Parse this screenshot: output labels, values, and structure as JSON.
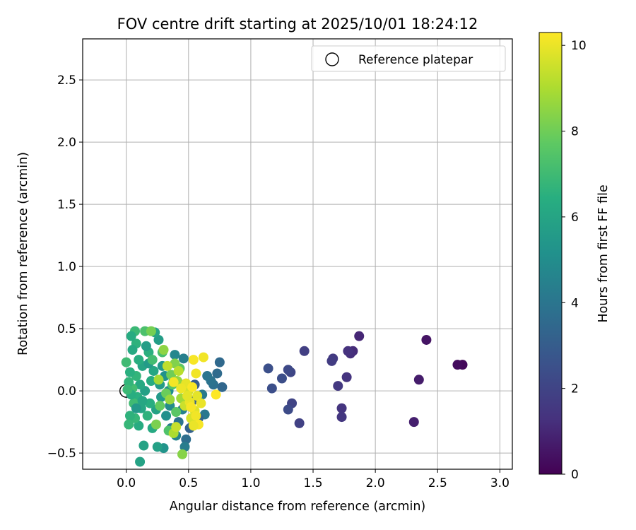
{
  "chart_data": {
    "type": "scatter",
    "title": "FOV centre drift starting at 2025/10/01 18:24:12",
    "xlabel": "Angular distance from reference (arcmin)",
    "ylabel": "Rotation from reference (arcmin)",
    "xlim": [
      -0.35,
      3.1
    ],
    "ylim": [
      -0.63,
      2.83
    ],
    "xticks": [
      0.0,
      0.5,
      1.0,
      1.5,
      2.0,
      2.5,
      3.0
    ],
    "xtick_labels": [
      "0.0",
      "0.5",
      "1.0",
      "1.5",
      "2.0",
      "2.5",
      "3.0"
    ],
    "yticks": [
      -0.5,
      0.0,
      0.5,
      1.0,
      1.5,
      2.0,
      2.5
    ],
    "ytick_labels": [
      "−0.5",
      "0.0",
      "0.5",
      "1.0",
      "1.5",
      "2.0",
      "2.5"
    ],
    "grid": true,
    "legend": {
      "location": "top-right",
      "entries": [
        "Reference platepar"
      ]
    },
    "reference": {
      "label": "Reference platepar",
      "x": 0.0,
      "y": 0.0
    },
    "colorbar": {
      "label": "Hours from first FF file",
      "colormap": "viridis",
      "range": [
        0,
        10.3
      ],
      "ticks": [
        0,
        2,
        4,
        6,
        8,
        10
      ],
      "tick_labels": [
        "0",
        "2",
        "4",
        "6",
        "8",
        "10"
      ]
    },
    "series": [
      {
        "name": "FOV centre drift",
        "points": [
          [
            2.7,
            0.21,
            0.2
          ],
          [
            2.66,
            0.21,
            0.3
          ],
          [
            2.41,
            0.41,
            0.5
          ],
          [
            2.35,
            0.09,
            0.7
          ],
          [
            2.31,
            -0.25,
            0.8
          ],
          [
            1.87,
            0.44,
            1.0
          ],
          [
            1.82,
            0.32,
            1.1
          ],
          [
            1.8,
            0.3,
            1.2
          ],
          [
            1.78,
            0.32,
            1.3
          ],
          [
            1.77,
            0.11,
            1.35
          ],
          [
            1.73,
            -0.14,
            1.4
          ],
          [
            1.73,
            -0.21,
            1.5
          ],
          [
            1.7,
            0.04,
            1.55
          ],
          [
            1.66,
            0.26,
            1.6
          ],
          [
            1.65,
            0.24,
            1.7
          ],
          [
            1.43,
            0.32,
            1.8
          ],
          [
            1.39,
            -0.26,
            1.9
          ],
          [
            1.33,
            -0.1,
            2.0
          ],
          [
            1.32,
            0.15,
            2.1
          ],
          [
            1.3,
            0.17,
            2.2
          ],
          [
            1.3,
            -0.15,
            2.3
          ],
          [
            1.25,
            0.1,
            2.4
          ],
          [
            1.17,
            0.02,
            2.45
          ],
          [
            1.14,
            0.18,
            2.5
          ],
          [
            0.77,
            0.03,
            3.4
          ],
          [
            0.75,
            0.23,
            3.5
          ],
          [
            0.73,
            0.14,
            3.6
          ],
          [
            0.7,
            0.05,
            3.8
          ],
          [
            0.68,
            0.08,
            3.9
          ],
          [
            0.65,
            0.12,
            4.0
          ],
          [
            0.63,
            -0.19,
            4.1
          ],
          [
            0.61,
            -0.03,
            4.2
          ],
          [
            0.58,
            -0.22,
            3.3
          ],
          [
            0.55,
            0.05,
            3.0
          ],
          [
            0.53,
            -0.08,
            3.1
          ],
          [
            0.51,
            -0.3,
            3.2
          ],
          [
            0.48,
            -0.39,
            3.7
          ],
          [
            0.47,
            -0.45,
            4.3
          ],
          [
            0.46,
            0.26,
            4.4
          ],
          [
            0.45,
            -0.15,
            4.5
          ],
          [
            0.44,
            0.05,
            3.6
          ],
          [
            0.42,
            -0.25,
            3.9
          ],
          [
            0.4,
            -0.36,
            4.6
          ],
          [
            0.39,
            0.29,
            4.7
          ],
          [
            0.38,
            0.08,
            4.8
          ],
          [
            0.36,
            -0.3,
            4.2
          ],
          [
            0.35,
            -0.12,
            4.9
          ],
          [
            0.34,
            0.0,
            5.0
          ],
          [
            0.32,
            -0.2,
            5.1
          ],
          [
            0.31,
            0.12,
            5.2
          ],
          [
            0.3,
            -0.46,
            5.3
          ],
          [
            0.29,
            0.2,
            5.4
          ],
          [
            0.28,
            -0.05,
            5.5
          ],
          [
            0.27,
            0.05,
            5.6
          ],
          [
            0.26,
            0.41,
            5.7
          ],
          [
            0.25,
            -0.45,
            5.8
          ],
          [
            0.24,
            -0.15,
            5.9
          ],
          [
            0.23,
            0.47,
            6.0
          ],
          [
            0.22,
            0.16,
            6.1
          ],
          [
            0.21,
            -0.3,
            6.2
          ],
          [
            0.2,
            0.08,
            6.3
          ],
          [
            0.19,
            -0.1,
            6.4
          ],
          [
            0.18,
            0.31,
            6.5
          ],
          [
            0.17,
            -0.2,
            6.6
          ],
          [
            0.16,
            0.36,
            5.7
          ],
          [
            0.15,
            0.0,
            5.8
          ],
          [
            0.14,
            -0.44,
            5.9
          ],
          [
            0.13,
            0.2,
            6.0
          ],
          [
            0.12,
            -0.14,
            6.1
          ],
          [
            0.11,
            0.05,
            6.2
          ],
          [
            0.1,
            -0.28,
            6.3
          ],
          [
            0.1,
            0.25,
            6.4
          ],
          [
            0.09,
            -0.05,
            6.5
          ],
          [
            0.08,
            0.38,
            6.6
          ],
          [
            0.08,
            0.12,
            6.7
          ],
          [
            0.07,
            -0.22,
            6.8
          ],
          [
            0.07,
            0.48,
            6.9
          ],
          [
            0.06,
            -0.1,
            7.0
          ],
          [
            0.05,
            0.02,
            7.1
          ],
          [
            0.05,
            0.33,
            6.2
          ],
          [
            0.04,
            0.44,
            6.3
          ],
          [
            0.04,
            -0.03,
            6.4
          ],
          [
            0.03,
            0.15,
            6.5
          ],
          [
            0.03,
            -0.2,
            6.6
          ],
          [
            0.02,
            0.07,
            6.7
          ],
          [
            0.02,
            -0.27,
            6.8
          ],
          [
            0.01,
            0.01,
            6.9
          ],
          [
            0.0,
            0.23,
            7.0
          ],
          [
            0.11,
            -0.57,
            5.9
          ],
          [
            0.08,
            -0.14,
            5.5
          ],
          [
            0.18,
            0.22,
            5.6
          ],
          [
            0.13,
            -0.08,
            6.1
          ],
          [
            0.21,
            0.25,
            7.1
          ],
          [
            0.29,
            0.31,
            7.2
          ],
          [
            0.15,
            0.48,
            7.3
          ],
          [
            0.34,
            -0.32,
            7.4
          ],
          [
            0.37,
            0.05,
            7.5
          ],
          [
            0.4,
            -0.17,
            7.6
          ],
          [
            0.43,
            0.18,
            7.7
          ],
          [
            0.27,
            -0.12,
            7.8
          ],
          [
            0.32,
            -0.02,
            7.9
          ],
          [
            0.36,
            0.13,
            8.0
          ],
          [
            0.2,
            0.48,
            8.1
          ],
          [
            0.24,
            -0.27,
            8.2
          ],
          [
            0.39,
            0.22,
            8.3
          ],
          [
            0.45,
            -0.51,
            8.4
          ],
          [
            0.3,
            0.33,
            8.5
          ],
          [
            0.41,
            0.08,
            8.6
          ],
          [
            0.35,
            -0.07,
            8.7
          ],
          [
            0.44,
            -0.06,
            8.8
          ],
          [
            0.26,
            0.09,
            8.9
          ],
          [
            0.38,
            -0.34,
            9.0
          ],
          [
            0.46,
            0.03,
            9.1
          ],
          [
            0.42,
            0.16,
            9.2
          ],
          [
            0.33,
            0.2,
            9.3
          ],
          [
            0.4,
            -0.29,
            9.4
          ],
          [
            0.47,
            -0.12,
            9.5
          ],
          [
            0.5,
            0.0,
            9.6
          ],
          [
            0.52,
            -0.22,
            9.7
          ],
          [
            0.55,
            -0.16,
            9.8
          ],
          [
            0.57,
            -0.04,
            9.9
          ],
          [
            0.6,
            -0.1,
            10.0
          ],
          [
            0.62,
            0.27,
            10.1
          ],
          [
            0.54,
            0.25,
            10.2
          ],
          [
            0.56,
            0.14,
            10.1
          ],
          [
            0.51,
            -0.09,
            10.0
          ],
          [
            0.58,
            -0.27,
            10.2
          ],
          [
            0.48,
            0.06,
            9.95
          ],
          [
            0.44,
            0.02,
            10.05
          ],
          [
            0.38,
            0.07,
            10.15
          ],
          [
            0.53,
            0.03,
            10.25
          ],
          [
            0.72,
            -0.03,
            10.3
          ],
          [
            0.54,
            -0.28,
            10.0
          ],
          [
            0.56,
            -0.2,
            10.1
          ],
          [
            0.52,
            -0.13,
            10.2
          ],
          [
            0.49,
            -0.04,
            9.9
          ]
        ]
      }
    ]
  }
}
